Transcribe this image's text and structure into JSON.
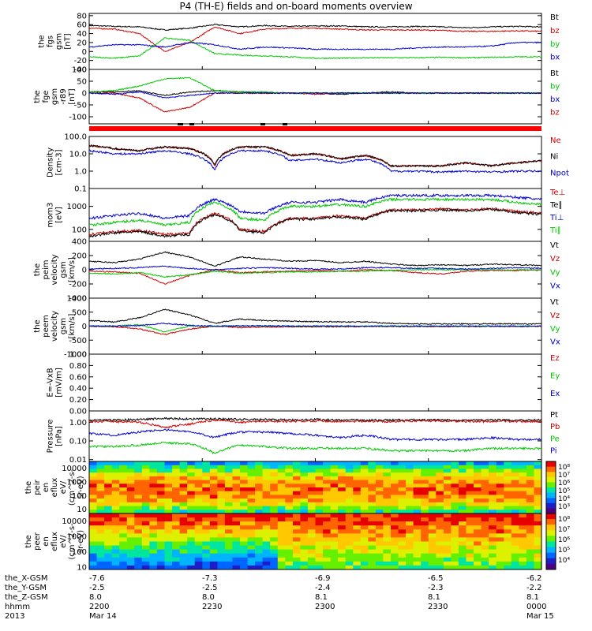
{
  "title": "P4 (TH-E) fields and on-board moments overview",
  "chart_data": [
    {
      "type": "line",
      "ylabel": [
        "the",
        "fgs",
        "gsm",
        "[nT]"
      ],
      "yticks": [
        "80",
        "60",
        "40",
        "20",
        "0",
        "-20",
        "-40"
      ],
      "ylim": [
        -40,
        85
      ],
      "legend": [
        "Bt",
        "bz",
        "by",
        "bx"
      ],
      "colors": [
        "#000000",
        "#d00000",
        "#00c800",
        "#0000d0"
      ],
      "series": [
        {
          "name": "Bt",
          "values": [
            58,
            56,
            55,
            48,
            52,
            60,
            55,
            58,
            56,
            57,
            57,
            55,
            55,
            56,
            55,
            53,
            55,
            56,
            55
          ]
        },
        {
          "name": "bz",
          "values": [
            52,
            50,
            40,
            0,
            20,
            55,
            40,
            50,
            52,
            52,
            50,
            48,
            48,
            48,
            47,
            45,
            45,
            46,
            45
          ]
        },
        {
          "name": "by",
          "values": [
            -12,
            -15,
            -10,
            30,
            25,
            -5,
            -8,
            -10,
            -12,
            -15,
            -15,
            -14,
            -14,
            -14,
            -13,
            -14,
            -13,
            -12,
            -12
          ]
        },
        {
          "name": "bx",
          "values": [
            10,
            15,
            15,
            10,
            20,
            15,
            5,
            10,
            8,
            5,
            5,
            5,
            5,
            8,
            10,
            10,
            12,
            20,
            20
          ]
        }
      ]
    },
    {
      "type": "line",
      "ylabel": [
        "the",
        "fge",
        "gsm",
        "-r89",
        "[nT]"
      ],
      "yticks": [
        "100",
        "50",
        "0",
        "-50",
        "-100"
      ],
      "ylim": [
        -130,
        100
      ],
      "legend": [
        "Bt",
        "by",
        "bx",
        "bz"
      ],
      "colors": [
        "#000000",
        "#00c800",
        "#0000d0",
        "#d00000"
      ],
      "series": [
        {
          "name": "Bt",
          "values": [
            5,
            5,
            10,
            -10,
            5,
            10,
            5,
            0,
            0,
            0,
            -5,
            0,
            5,
            0,
            0,
            0,
            0,
            0,
            0
          ]
        },
        {
          "name": "bz",
          "values": [
            0,
            0,
            -20,
            -80,
            -60,
            0,
            0,
            0,
            0,
            -5,
            0,
            0,
            0,
            0,
            0,
            0,
            0,
            0,
            0
          ]
        },
        {
          "name": "by",
          "values": [
            5,
            10,
            30,
            60,
            65,
            10,
            5,
            5,
            0,
            0,
            0,
            0,
            0,
            0,
            0,
            0,
            0,
            0,
            0
          ]
        },
        {
          "name": "bx",
          "values": [
            0,
            -5,
            5,
            -20,
            -10,
            0,
            0,
            0,
            0,
            0,
            0,
            0,
            0,
            0,
            0,
            0,
            0,
            0,
            0
          ]
        }
      ]
    },
    {
      "type": "line",
      "ylabel": [
        "Density",
        "[cm-3]"
      ],
      "yticks": [
        "100.0",
        "10.0",
        "1.0",
        "0.1"
      ],
      "ylim": [
        0.1,
        100
      ],
      "log": true,
      "legend": [
        "Ne",
        "Ni",
        "Npot"
      ],
      "colors": [
        "#d00000",
        "#000000",
        "#0000d0"
      ],
      "series": [
        {
          "name": "Ne",
          "values": [
            30,
            20,
            15,
            25,
            20,
            2,
            25,
            25,
            8,
            10,
            5,
            8,
            2,
            2,
            2,
            3,
            2,
            3,
            4
          ]
        },
        {
          "name": "Ni",
          "values": [
            30,
            20,
            15,
            25,
            20,
            2,
            25,
            25,
            8,
            10,
            5,
            8,
            2,
            2,
            2,
            3,
            2,
            3,
            4
          ]
        },
        {
          "name": "Npot",
          "values": [
            15,
            10,
            10,
            15,
            10,
            1,
            15,
            15,
            4,
            5,
            3,
            5,
            1,
            1,
            0.9,
            1,
            0.9,
            1,
            1
          ]
        }
      ]
    },
    {
      "type": "line",
      "ylabel": [
        "mom3",
        "[eV]"
      ],
      "yticks": [
        "1000",
        "100"
      ],
      "ylim": [
        30,
        6000
      ],
      "log": true,
      "legend": [
        "Te⊥",
        "Te∥",
        "Ti⊥",
        "Ti∥"
      ],
      "colors": [
        "#d00000",
        "#000000",
        "#0000d0",
        "#00c800"
      ],
      "series": [
        {
          "name": "Te⊥",
          "values": [
            60,
            80,
            90,
            60,
            70,
            500,
            100,
            80,
            300,
            300,
            400,
            300,
            700,
            700,
            800,
            700,
            800,
            600,
            500
          ]
        },
        {
          "name": "Te∥",
          "values": [
            50,
            70,
            80,
            50,
            60,
            450,
            90,
            70,
            280,
            280,
            350,
            280,
            650,
            650,
            700,
            650,
            750,
            550,
            450
          ]
        },
        {
          "name": "Ti⊥",
          "values": [
            300,
            400,
            500,
            300,
            400,
            2000,
            600,
            500,
            1500,
            1500,
            2000,
            1500,
            3000,
            3000,
            3000,
            3000,
            3000,
            2500,
            2000
          ]
        },
        {
          "name": "Ti∥",
          "values": [
            150,
            200,
            250,
            150,
            200,
            1500,
            300,
            250,
            1000,
            1000,
            1200,
            1000,
            2000,
            2000,
            2000,
            2000,
            2000,
            1500,
            1200
          ]
        }
      ]
    },
    {
      "type": "line",
      "ylabel": [
        "the",
        "peim",
        "velocity",
        "gsm",
        "[km/s]"
      ],
      "yticks": [
        "400",
        "200",
        "0",
        "-200",
        "-400"
      ],
      "ylim": [
        -400,
        400
      ],
      "legend": [
        "Vt",
        "Vz",
        "Vy",
        "Vx"
      ],
      "colors": [
        "#000000",
        "#d00000",
        "#00c800",
        "#0000d0"
      ],
      "series": [
        {
          "name": "Vt",
          "values": [
            120,
            100,
            150,
            250,
            180,
            50,
            180,
            150,
            120,
            130,
            100,
            120,
            80,
            60,
            70,
            60,
            80,
            70,
            60
          ]
        },
        {
          "name": "Vz",
          "values": [
            -20,
            -30,
            -50,
            -200,
            -80,
            0,
            -40,
            -30,
            -20,
            -10,
            -20,
            0,
            -10,
            -40,
            -60,
            -20,
            -10,
            -10,
            -5
          ]
        },
        {
          "name": "Vy",
          "values": [
            -50,
            -60,
            -40,
            -100,
            -70,
            -20,
            -50,
            -40,
            -30,
            -30,
            -20,
            -20,
            -10,
            0,
            0,
            0,
            0,
            0,
            0
          ]
        },
        {
          "name": "Vx",
          "values": [
            10,
            20,
            30,
            50,
            20,
            0,
            20,
            30,
            20,
            10,
            10,
            30,
            30,
            20,
            20,
            10,
            20,
            30,
            20
          ]
        }
      ]
    },
    {
      "type": "line",
      "ylabel": [
        "the",
        "peem",
        "velocity",
        "gsm",
        "[km/s]"
      ],
      "yticks": [
        "1000",
        "500",
        "0",
        "-500",
        "-1000"
      ],
      "ylim": [
        -1000,
        1000
      ],
      "legend": [
        "Vt",
        "Vz",
        "Vy",
        "Vx"
      ],
      "colors": [
        "#000000",
        "#d00000",
        "#00c800",
        "#0000d0"
      ],
      "series": [
        {
          "name": "Vt",
          "values": [
            200,
            150,
            300,
            600,
            400,
            100,
            250,
            200,
            180,
            160,
            150,
            150,
            100,
            80,
            80,
            80,
            80,
            80,
            80
          ]
        },
        {
          "name": "Vz",
          "values": [
            0,
            -20,
            -100,
            -300,
            -100,
            0,
            -50,
            -30,
            -20,
            -20,
            -20,
            -10,
            -10,
            -10,
            -10,
            -10,
            -10,
            -10,
            -10
          ]
        },
        {
          "name": "Vy",
          "values": [
            0,
            10,
            50,
            -200,
            0,
            0,
            10,
            10,
            0,
            0,
            0,
            0,
            0,
            0,
            0,
            0,
            0,
            0,
            0
          ]
        },
        {
          "name": "Vx",
          "values": [
            0,
            0,
            20,
            100,
            30,
            0,
            10,
            10,
            0,
            0,
            0,
            0,
            0,
            0,
            0,
            0,
            0,
            0,
            0
          ]
        }
      ]
    },
    {
      "type": "line",
      "ylabel": [
        "E=-VxB",
        "[mV/m]"
      ],
      "yticks": [
        "1.00",
        "0.80",
        "0.60",
        "0.40",
        "0.20",
        "0.00"
      ],
      "ylim": [
        0,
        1
      ],
      "legend": [
        "Ez",
        "Ey",
        "Ex"
      ],
      "colors": [
        "#d00000",
        "#00c800",
        "#0000d0"
      ],
      "series": []
    },
    {
      "type": "line",
      "ylabel": [
        "Pressure",
        "[nPa]"
      ],
      "yticks": [
        "1.00",
        "0.10",
        "0.01"
      ],
      "ylim": [
        0.008,
        4
      ],
      "log": true,
      "legend": [
        "Pt",
        "Pb",
        "Pe",
        "Pi"
      ],
      "colors": [
        "#000000",
        "#d00000",
        "#00c800",
        "#0000d0"
      ],
      "series": [
        {
          "name": "Pt",
          "values": [
            1.3,
            1.3,
            1.4,
            1.6,
            1.5,
            1.5,
            1.4,
            1.4,
            1.3,
            1.4,
            1.3,
            1.3,
            1.3,
            1.3,
            1.3,
            1.3,
            1.3,
            1.3,
            1.3
          ]
        },
        {
          "name": "Pb",
          "values": [
            1.1,
            1.1,
            1.0,
            0.5,
            0.8,
            1.3,
            1.0,
            1.1,
            1.1,
            1.2,
            1.1,
            1.1,
            1.1,
            1.2,
            1.2,
            1.1,
            1.1,
            1.1,
            1.1
          ]
        },
        {
          "name": "Pe",
          "values": [
            0.05,
            0.05,
            0.06,
            0.08,
            0.07,
            0.02,
            0.06,
            0.05,
            0.04,
            0.04,
            0.04,
            0.04,
            0.03,
            0.03,
            0.03,
            0.03,
            0.04,
            0.04,
            0.04
          ]
        },
        {
          "name": "Pi",
          "values": [
            0.25,
            0.2,
            0.3,
            0.4,
            0.3,
            0.15,
            0.3,
            0.3,
            0.25,
            0.2,
            0.15,
            0.2,
            0.12,
            0.12,
            0.12,
            0.12,
            0.15,
            0.12,
            0.12
          ]
        }
      ]
    },
    {
      "type": "heatmap",
      "ylabel": [
        "the",
        "peir",
        "en",
        "eflux",
        "eV/",
        "(cm^2-s-",
        "sr-eV)"
      ],
      "yticks": [
        "10000",
        "1000",
        "100",
        "10"
      ],
      "ylim": [
        5,
        30000
      ],
      "log": true,
      "colorbar": [
        "10⁸",
        "10⁷",
        "10⁶",
        "10⁵",
        "10⁴",
        "10³"
      ]
    },
    {
      "type": "heatmap",
      "ylabel": [
        "the",
        "peer",
        "en",
        "eflux",
        "eV/",
        "(cm^2-s-",
        "sr-eV)"
      ],
      "yticks": [
        "10000",
        "1000",
        "100",
        "10"
      ],
      "ylim": [
        7,
        30000
      ],
      "log": true,
      "colorbar": [
        "10⁸",
        "10⁷",
        "10⁶",
        "10⁵",
        "10⁴"
      ]
    }
  ],
  "footer": {
    "rows": [
      {
        "label": "the_X-GSM",
        "values": [
          "-7.6",
          "-7.3",
          "-6.9",
          "-6.5",
          "-6.2"
        ]
      },
      {
        "label": "the_Y-GSM",
        "values": [
          "-2.5",
          "-2.5",
          "-2.4",
          "-2.3",
          "-2.2"
        ]
      },
      {
        "label": "the_Z-GSM",
        "values": [
          "8.0",
          "8.0",
          "8.1",
          "8.1",
          "8.1"
        ]
      },
      {
        "label": "hhmm",
        "values": [
          "2200",
          "2230",
          "2300",
          "2330",
          "0000"
        ]
      },
      {
        "label": "2013",
        "values": [
          "Mar 14",
          "",
          "",
          "",
          "Mar 15"
        ]
      }
    ]
  }
}
